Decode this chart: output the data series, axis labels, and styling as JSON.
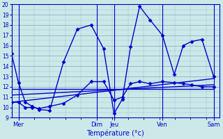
{
  "title": "Température (°c)",
  "background_color": "#cce8e8",
  "grid_color": "#6699bb",
  "line_color": "#0000cc",
  "ylim": [
    9,
    20
  ],
  "yticks": [
    9,
    10,
    11,
    12,
    13,
    14,
    15,
    16,
    17,
    18,
    19,
    20
  ],
  "xlim": [
    0,
    300
  ],
  "day_labels": [
    "Mer",
    "Dim",
    "Jeu",
    "Ven",
    "Sam"
  ],
  "day_x": [
    10,
    123,
    148,
    218,
    292
  ],
  "day_vline_x": [
    10,
    123,
    148,
    218,
    292
  ],
  "series_main": {
    "x": [
      0,
      10,
      20,
      30,
      40,
      55,
      75,
      95,
      115,
      133,
      148,
      160,
      172,
      185,
      200,
      218,
      235,
      248,
      260,
      275,
      292
    ],
    "y": [
      15.2,
      12.4,
      10.5,
      10.1,
      9.8,
      9.7,
      14.4,
      17.6,
      18.0,
      15.7,
      9.4,
      10.8,
      15.9,
      19.8,
      18.5,
      17.0,
      13.2,
      16.0,
      16.4,
      16.6,
      13.0
    ]
  },
  "series_trend1": {
    "x": [
      0,
      292
    ],
    "y": [
      10.5,
      12.8
    ]
  },
  "series_trend2": {
    "x": [
      0,
      292
    ],
    "y": [
      11.2,
      12.2
    ]
  },
  "series_trend3": {
    "x": [
      0,
      292
    ],
    "y": [
      11.8,
      11.8
    ]
  },
  "series_mid": {
    "x": [
      0,
      10,
      20,
      30,
      40,
      55,
      75,
      95,
      115,
      133,
      148,
      160,
      172,
      185,
      200,
      218,
      235,
      248,
      260,
      275,
      292
    ],
    "y": [
      10.5,
      10.5,
      10.0,
      10.0,
      9.9,
      10.1,
      10.4,
      11.2,
      12.5,
      12.5,
      10.7,
      11.0,
      12.3,
      12.5,
      12.3,
      12.5,
      12.4,
      12.3,
      12.2,
      12.0,
      12.0
    ]
  },
  "marker": "D",
  "markersize": 2.5,
  "linewidth": 1.0
}
